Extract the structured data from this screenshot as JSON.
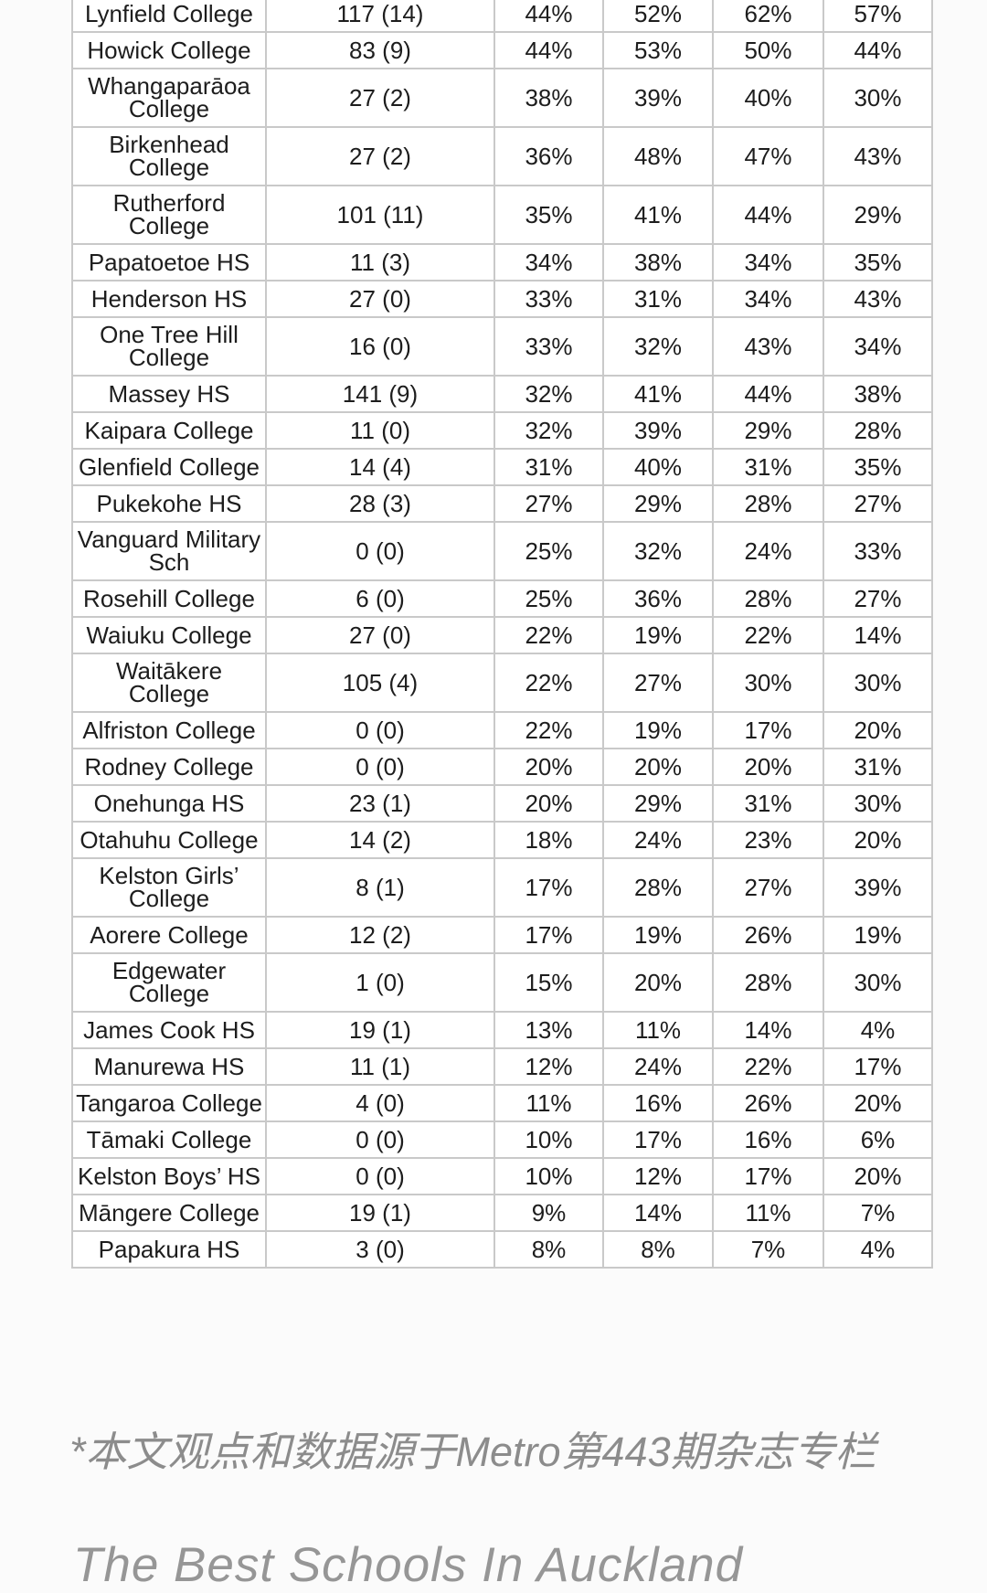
{
  "chart_data": {
    "type": "table",
    "rows": [
      {
        "school_lines": [
          "Lynfield College"
        ],
        "enrolled": "117 (14)",
        "percents": [
          "44%",
          "52%",
          "62%",
          "57%"
        ]
      },
      {
        "school_lines": [
          "Howick College"
        ],
        "enrolled": "83 (9)",
        "percents": [
          "44%",
          "53%",
          "50%",
          "44%"
        ]
      },
      {
        "school_lines": [
          "Whangaparāoa",
          "College"
        ],
        "enrolled": "27 (2)",
        "percents": [
          "38%",
          "39%",
          "40%",
          "30%"
        ]
      },
      {
        "school_lines": [
          "Birkenhead",
          "College"
        ],
        "enrolled": "27 (2)",
        "percents": [
          "36%",
          "48%",
          "47%",
          "43%"
        ]
      },
      {
        "school_lines": [
          "Rutherford",
          "College"
        ],
        "enrolled": "101 (11)",
        "percents": [
          "35%",
          "41%",
          "44%",
          "29%"
        ]
      },
      {
        "school_lines": [
          "Papatoetoe HS"
        ],
        "enrolled": "11 (3)",
        "percents": [
          "34%",
          "38%",
          "34%",
          "35%"
        ]
      },
      {
        "school_lines": [
          "Henderson HS"
        ],
        "enrolled": "27 (0)",
        "percents": [
          "33%",
          "31%",
          "34%",
          "43%"
        ]
      },
      {
        "school_lines": [
          "One Tree Hill",
          "College"
        ],
        "enrolled": "16 (0)",
        "percents": [
          "33%",
          "32%",
          "43%",
          "34%"
        ]
      },
      {
        "school_lines": [
          "Massey HS"
        ],
        "enrolled": "141 (9)",
        "percents": [
          "32%",
          "41%",
          "44%",
          "38%"
        ]
      },
      {
        "school_lines": [
          "Kaipara College"
        ],
        "enrolled": "11 (0)",
        "percents": [
          "32%",
          "39%",
          "29%",
          "28%"
        ]
      },
      {
        "school_lines": [
          "Glenfield College"
        ],
        "enrolled": "14 (4)",
        "percents": [
          "31%",
          "40%",
          "31%",
          "35%"
        ]
      },
      {
        "school_lines": [
          "Pukekohe HS"
        ],
        "enrolled": "28 (3)",
        "percents": [
          "27%",
          "29%",
          "28%",
          "27%"
        ]
      },
      {
        "school_lines": [
          "Vanguard Military",
          "Sch"
        ],
        "enrolled": "0 (0)",
        "percents": [
          "25%",
          "32%",
          "24%",
          "33%"
        ]
      },
      {
        "school_lines": [
          "Rosehill College"
        ],
        "enrolled": "6 (0)",
        "percents": [
          "25%",
          "36%",
          "28%",
          "27%"
        ]
      },
      {
        "school_lines": [
          "Waiuku College"
        ],
        "enrolled": "27 (0)",
        "percents": [
          "22%",
          "19%",
          "22%",
          "14%"
        ]
      },
      {
        "school_lines": [
          "Waitākere",
          "College"
        ],
        "enrolled": "105 (4)",
        "percents": [
          "22%",
          "27%",
          "30%",
          "30%"
        ]
      },
      {
        "school_lines": [
          "Alfriston College"
        ],
        "enrolled": "0 (0)",
        "percents": [
          "22%",
          "19%",
          "17%",
          "20%"
        ]
      },
      {
        "school_lines": [
          "Rodney College"
        ],
        "enrolled": "0 (0)",
        "percents": [
          "20%",
          "20%",
          "20%",
          "31%"
        ]
      },
      {
        "school_lines": [
          "Onehunga HS"
        ],
        "enrolled": "23 (1)",
        "percents": [
          "20%",
          "29%",
          "31%",
          "30%"
        ]
      },
      {
        "school_lines": [
          "Otahuhu College"
        ],
        "enrolled": "14 (2)",
        "percents": [
          "18%",
          "24%",
          "23%",
          "20%"
        ]
      },
      {
        "school_lines": [
          "Kelston Girls’",
          "College"
        ],
        "enrolled": "8 (1)",
        "percents": [
          "17%",
          "28%",
          "27%",
          "39%"
        ]
      },
      {
        "school_lines": [
          "Aorere College"
        ],
        "enrolled": "12 (2)",
        "percents": [
          "17%",
          "19%",
          "26%",
          "19%"
        ]
      },
      {
        "school_lines": [
          "Edgewater",
          "College"
        ],
        "enrolled": "1 (0)",
        "percents": [
          "15%",
          "20%",
          "28%",
          "30%"
        ]
      },
      {
        "school_lines": [
          "James Cook HS"
        ],
        "enrolled": "19 (1)",
        "percents": [
          "13%",
          "11%",
          "14%",
          "4%"
        ]
      },
      {
        "school_lines": [
          "Manurewa HS"
        ],
        "enrolled": "11 (1)",
        "percents": [
          "12%",
          "24%",
          "22%",
          "17%"
        ]
      },
      {
        "school_lines": [
          "Tangaroa College"
        ],
        "enrolled": "4 (0)",
        "percents": [
          "11%",
          "16%",
          "26%",
          "20%"
        ]
      },
      {
        "school_lines": [
          "Tāmaki College"
        ],
        "enrolled": "0 (0)",
        "percents": [
          "10%",
          "17%",
          "16%",
          "6%"
        ]
      },
      {
        "school_lines": [
          "Kelston Boys’ HS"
        ],
        "enrolled": "0 (0)",
        "percents": [
          "10%",
          "12%",
          "17%",
          "20%"
        ]
      },
      {
        "school_lines": [
          "Māngere College"
        ],
        "enrolled": "19 (1)",
        "percents": [
          "9%",
          "14%",
          "11%",
          "7%"
        ]
      },
      {
        "school_lines": [
          "Papakura HS"
        ],
        "enrolled": "3 (0)",
        "percents": [
          "8%",
          "8%",
          "7%",
          "4%"
        ]
      }
    ]
  },
  "footnotes": {
    "source_zh": "*本文观点和数据源于Metro第443期杂志专栏",
    "title_en": "The Best Schools In Auckland"
  },
  "colors": {
    "grid": "#c9c9c9",
    "table_text": "#1d1d1d",
    "footnote_gray": "#8c8c8c"
  }
}
